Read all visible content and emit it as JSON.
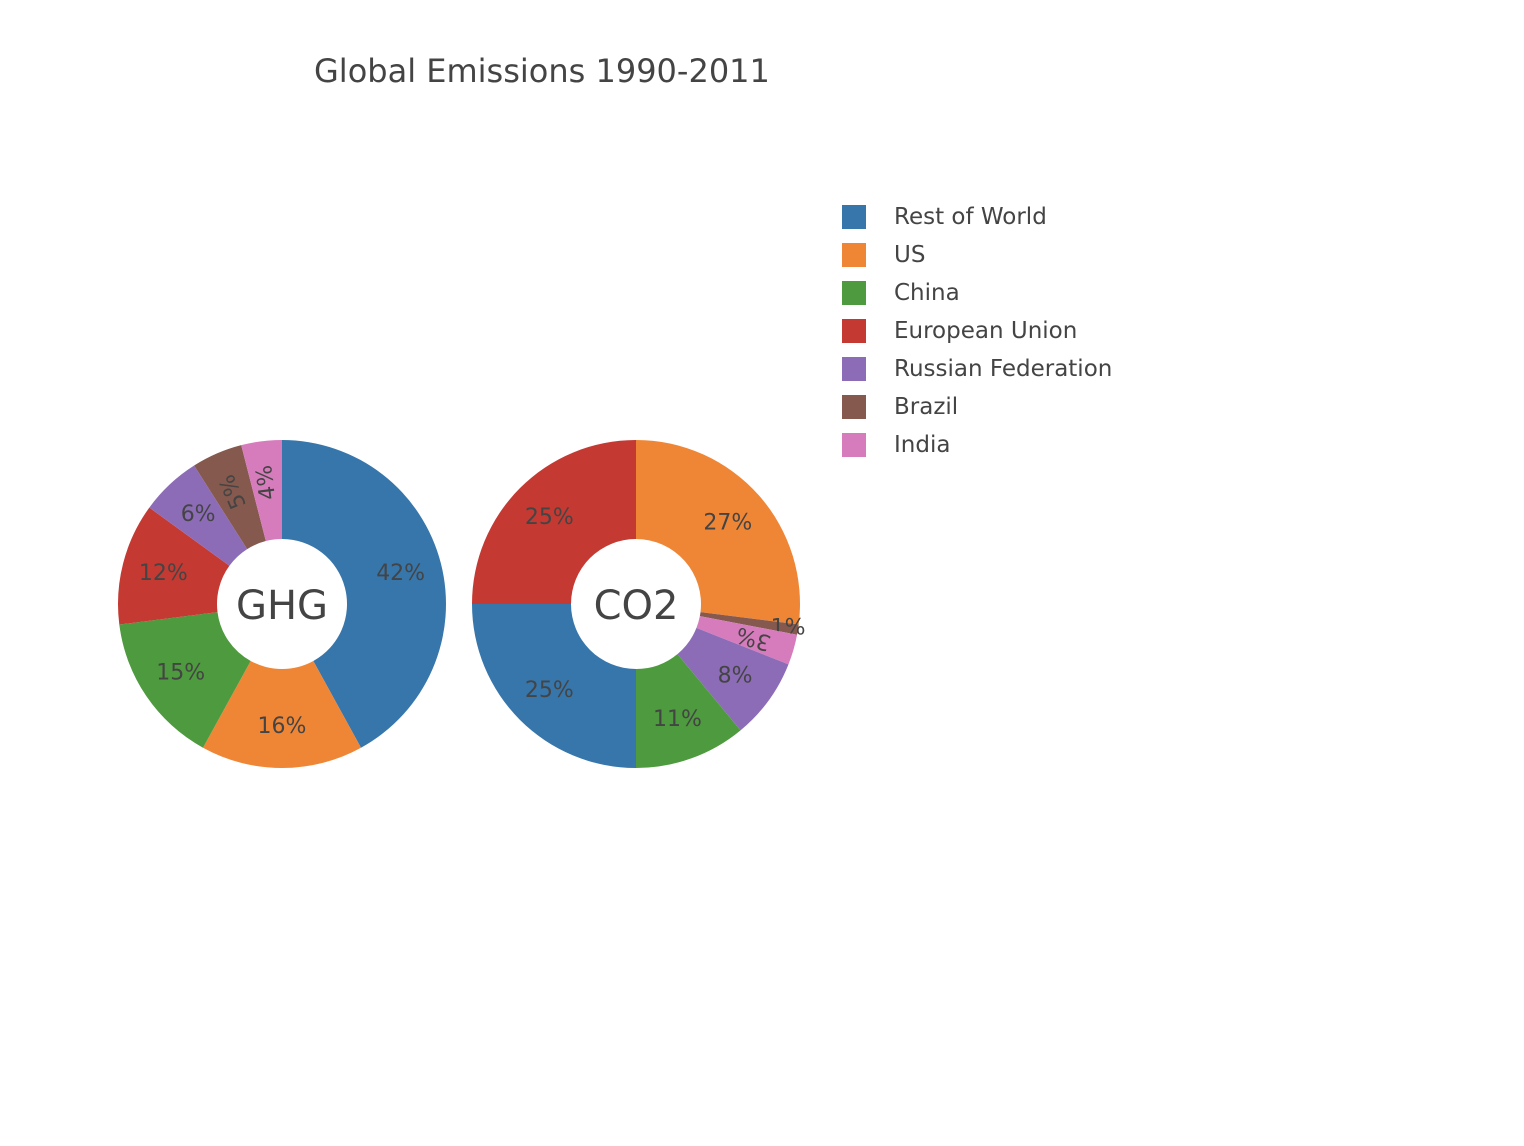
{
  "title": "Global Emissions 1990-2011",
  "legend": [
    {
      "label": "Rest of World",
      "color": "#3776ab"
    },
    {
      "label": "US",
      "color": "#ef8636"
    },
    {
      "label": "China",
      "color": "#4e9a3e"
    },
    {
      "label": "European Union",
      "color": "#c43a33"
    },
    {
      "label": "Russian Federation",
      "color": "#8d6cb7"
    },
    {
      "label": "Brazil",
      "color": "#85594e"
    },
    {
      "label": "India",
      "color": "#d67cbd"
    }
  ],
  "chart_data": [
    {
      "type": "pie",
      "hole": true,
      "hole_label": "GHG",
      "direction": "clockwise",
      "sort": "descending",
      "categories": [
        "Rest of World",
        "US",
        "China",
        "European Union",
        "Russian Federation",
        "Brazil",
        "India"
      ],
      "values": [
        42,
        16,
        15,
        12,
        6,
        5,
        4
      ],
      "labels": [
        "42%",
        "16%",
        "15%",
        "12%",
        "6%",
        "5%",
        "4%"
      ]
    },
    {
      "type": "pie",
      "hole": true,
      "hole_label": "CO2",
      "direction": "clockwise",
      "sort": "descending",
      "categories": [
        "US",
        "Brazil",
        "India",
        "Russian Federation",
        "China",
        "Rest of World",
        "European Union"
      ],
      "values": [
        27,
        1,
        3,
        8,
        11,
        25,
        25
      ],
      "labels": [
        "27%",
        "1%",
        "3%",
        "8%",
        "11%",
        "25%",
        "25%"
      ]
    }
  ]
}
